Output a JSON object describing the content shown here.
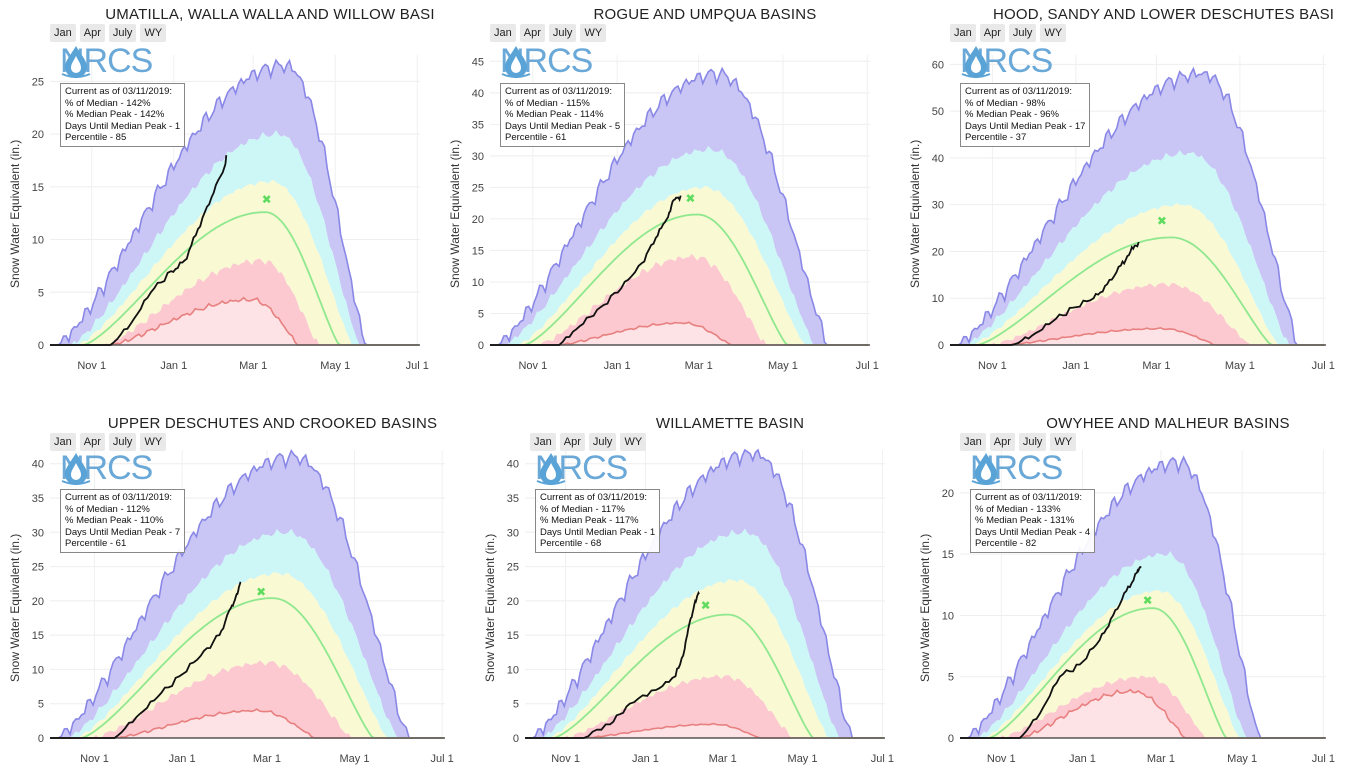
{
  "range_buttons": [
    "Jan",
    "Apr",
    "July",
    "WY"
  ],
  "logo_text": "NRCS",
  "logo_icon": "water-drop-icon",
  "y_axis_label": "Snow Water Equivalent (in.)",
  "month_ticks": [
    "Nov 1",
    "Jan 1",
    "Mar 1",
    "May 1",
    "Jul 1"
  ],
  "colors": {
    "max_band": "#c9c6f5",
    "max_line": "#8a88e6",
    "upper_band": "#cdf6f7",
    "mid_band": "#f9f9d3",
    "lower_band": "#fbc9cf",
    "min_line": "#e88080",
    "median_line": "#8fe88f",
    "current_line": "#111111",
    "median_peak_marker": "#5fdc5f"
  },
  "chart_data": [
    {
      "type": "area",
      "title": "UMATILLA, WALLA WALLA AND WILLOW BASI",
      "ylabel": "Snow Water Equivalent (in.)",
      "y_ticks": [
        0,
        5,
        10,
        15,
        20,
        25
      ],
      "ylim": [
        0,
        27.5
      ],
      "x_ticks": [
        "Nov 1",
        "Jan 1",
        "Mar 1",
        "May 1",
        "Jul 1"
      ],
      "info": [
        "Current as of 03/11/2019:",
        "% of Median - 142%",
        "% Median Peak - 142%",
        "Days Until Median Peak - 1",
        "Percentile - 85"
      ],
      "series": [
        {
          "name": "max",
          "peak": 26.5,
          "peak_day": 175,
          "start": 5,
          "end": 235
        },
        {
          "name": "p90",
          "peak": 20,
          "peak_day": 170,
          "start": 15,
          "end": 230
        },
        {
          "name": "p70",
          "peak": 15.5,
          "peak_day": 165,
          "start": 20,
          "end": 225
        },
        {
          "name": "median",
          "peak": 12.6,
          "peak_day": 160,
          "start": 25,
          "end": 215
        },
        {
          "name": "p30",
          "peak": 8,
          "peak_day": 158,
          "start": 40,
          "end": 200
        },
        {
          "name": "min",
          "peak": 4.3,
          "peak_day": 150,
          "start": 45,
          "end": 185
        },
        {
          "name": "current",
          "points": [
            [
              45,
              0
            ],
            [
              60,
              2
            ],
            [
              75,
              5
            ],
            [
              90,
              7
            ],
            [
              100,
              8
            ],
            [
              110,
              11
            ],
            [
              120,
              14
            ],
            [
              130,
              17
            ],
            [
              131,
              18
            ]
          ]
        }
      ],
      "median_peak": {
        "day": 161,
        "value": 13.8
      }
    },
    {
      "type": "area",
      "title": "ROGUE AND UMPQUA BASINS",
      "ylabel": "Snow Water Equivalent (in.)",
      "y_ticks": [
        0,
        5,
        10,
        15,
        20,
        25,
        30,
        35,
        40,
        45
      ],
      "ylim": [
        0,
        46
      ],
      "x_ticks": [
        "Nov 1",
        "Jan 1",
        "Mar 1",
        "May 1",
        "Jul 1"
      ],
      "info": [
        "Current as of 03/11/2019:",
        "% of Median - 115%",
        "% Median Peak - 114%",
        "Days Until Median Peak - 5",
        "Percentile - 61"
      ],
      "series": [
        {
          "name": "max",
          "peak": 43,
          "peak_day": 165,
          "start": 5,
          "end": 245
        },
        {
          "name": "p90",
          "peak": 31,
          "peak_day": 160,
          "start": 10,
          "end": 235
        },
        {
          "name": "p70",
          "peak": 25,
          "peak_day": 155,
          "start": 20,
          "end": 228
        },
        {
          "name": "median",
          "peak": 20.7,
          "peak_day": 150,
          "start": 25,
          "end": 215
        },
        {
          "name": "p30",
          "peak": 14,
          "peak_day": 148,
          "start": 35,
          "end": 200
        },
        {
          "name": "min",
          "peak": 3.5,
          "peak_day": 140,
          "start": 50,
          "end": 175
        },
        {
          "name": "current",
          "points": [
            [
              50,
              0
            ],
            [
              65,
              3
            ],
            [
              80,
              6
            ],
            [
              95,
              9
            ],
            [
              110,
              13
            ],
            [
              120,
              17
            ],
            [
              128,
              20
            ],
            [
              133,
              23
            ],
            [
              138,
              23.7
            ]
          ]
        }
      ],
      "median_peak": {
        "day": 145,
        "value": 23.2
      }
    },
    {
      "type": "area",
      "title": "HOOD, SANDY AND LOWER DESCHUTES BASI",
      "ylabel": "Snow Water Equivalent (in.)",
      "y_ticks": [
        0,
        10,
        20,
        30,
        40,
        50,
        60
      ],
      "ylim": [
        0,
        62
      ],
      "x_ticks": [
        "Nov 1",
        "Jan 1",
        "Mar 1",
        "May 1",
        "Jul 1"
      ],
      "info": [
        "Current as of 03/11/2019:",
        "% of Median - 98%",
        "% Median Peak - 96%",
        "Days Until Median Peak - 17",
        "Percentile - 37"
      ],
      "series": [
        {
          "name": "max",
          "peak": 58,
          "peak_day": 185,
          "start": 5,
          "end": 255
        },
        {
          "name": "p90",
          "peak": 41,
          "peak_day": 175,
          "start": 10,
          "end": 248
        },
        {
          "name": "p70",
          "peak": 30,
          "peak_day": 170,
          "start": 15,
          "end": 240
        },
        {
          "name": "median",
          "peak": 23,
          "peak_day": 162,
          "start": 20,
          "end": 235
        },
        {
          "name": "p30",
          "peak": 13,
          "peak_day": 160,
          "start": 30,
          "end": 220
        },
        {
          "name": "min",
          "peak": 3.5,
          "peak_day": 155,
          "start": 40,
          "end": 195
        },
        {
          "name": "current",
          "points": [
            [
              45,
              0
            ],
            [
              60,
              2
            ],
            [
              75,
              5
            ],
            [
              90,
              8
            ],
            [
              105,
              10
            ],
            [
              115,
              13
            ],
            [
              125,
              17
            ],
            [
              132,
              20
            ],
            [
              138,
              22
            ]
          ]
        }
      ],
      "median_peak": {
        "day": 155,
        "value": 26.5
      }
    },
    {
      "type": "area",
      "title": "UPPER DESCHUTES AND CROOKED BASINS",
      "ylabel": "Snow Water Equivalent (in.)",
      "y_ticks": [
        0,
        5,
        10,
        15,
        20,
        25,
        30,
        35,
        40
      ],
      "ylim": [
        0,
        42
      ],
      "x_ticks": [
        "Nov 1",
        "Jan 1",
        "Mar 1",
        "May 1",
        "Jul 1"
      ],
      "info": [
        "Current as of 03/11/2019:",
        "% of Median - 112%",
        "% Median Peak - 110%",
        "Days Until Median Peak - 7",
        "Percentile - 61"
      ],
      "series": [
        {
          "name": "max",
          "peak": 41,
          "peak_day": 170,
          "start": 5,
          "end": 250
        },
        {
          "name": "p90",
          "peak": 30,
          "peak_day": 165,
          "start": 12,
          "end": 242
        },
        {
          "name": "p70",
          "peak": 24,
          "peak_day": 160,
          "start": 18,
          "end": 235
        },
        {
          "name": "median",
          "peak": 20.4,
          "peak_day": 155,
          "start": 22,
          "end": 225
        },
        {
          "name": "p30",
          "peak": 11,
          "peak_day": 152,
          "start": 30,
          "end": 210
        },
        {
          "name": "min",
          "peak": 4,
          "peak_day": 145,
          "start": 45,
          "end": 185
        },
        {
          "name": "current",
          "points": [
            [
              45,
              0
            ],
            [
              60,
              3
            ],
            [
              75,
              6
            ],
            [
              90,
              9
            ],
            [
              105,
              12
            ],
            [
              118,
              15
            ],
            [
              126,
              19
            ],
            [
              130,
              21
            ],
            [
              133,
              22.6
            ]
          ]
        }
      ],
      "median_peak": {
        "day": 147,
        "value": 21.3
      }
    },
    {
      "type": "area",
      "title": "WILLAMETTE BASIN",
      "ylabel": "Snow Water Equivalent (in.)",
      "y_ticks": [
        0,
        5,
        10,
        15,
        20,
        25,
        30,
        35,
        40
      ],
      "ylim": [
        0,
        42
      ],
      "x_ticks": [
        "Nov 1",
        "Jan 1",
        "Mar 1",
        "May 1",
        "Jul 1"
      ],
      "info": [
        "Current as of 03/11/2019:",
        "% of Median - 117%",
        "% Median Peak - 117%",
        "Days Until Median Peak - 1",
        "Percentile - 68"
      ],
      "series": [
        {
          "name": "max",
          "peak": 41.5,
          "peak_day": 175,
          "start": 5,
          "end": 250
        },
        {
          "name": "p90",
          "peak": 30,
          "peak_day": 168,
          "start": 12,
          "end": 240
        },
        {
          "name": "p70",
          "peak": 23,
          "peak_day": 162,
          "start": 18,
          "end": 232
        },
        {
          "name": "median",
          "peak": 18,
          "peak_day": 155,
          "start": 22,
          "end": 220
        },
        {
          "name": "p30",
          "peak": 9,
          "peak_day": 152,
          "start": 30,
          "end": 205
        },
        {
          "name": "min",
          "peak": 2,
          "peak_day": 145,
          "start": 45,
          "end": 180
        },
        {
          "name": "current",
          "points": [
            [
              45,
              0
            ],
            [
              65,
              2
            ],
            [
              80,
              5
            ],
            [
              100,
              7
            ],
            [
              115,
              9
            ],
            [
              122,
              13
            ],
            [
              126,
              17
            ],
            [
              130,
              20
            ],
            [
              133,
              21
            ]
          ]
        }
      ],
      "median_peak": {
        "day": 138,
        "value": 19.3
      }
    },
    {
      "type": "area",
      "title": "OWYHEE AND MALHEUR BASINS",
      "ylabel": "Snow Water Equivalent (in.)",
      "y_ticks": [
        0,
        5,
        10,
        15,
        20
      ],
      "ylim": [
        0,
        23.5
      ],
      "x_ticks": [
        "Nov 1",
        "Jan 1",
        "Mar 1",
        "May 1",
        "Jul 1"
      ],
      "info": [
        "Current as of 03/11/2019:",
        "% of Median - 133%",
        "% Median Peak - 131%",
        "Days Until Median Peak - 4",
        "Percentile - 82"
      ],
      "series": [
        {
          "name": "max",
          "peak": 22.5,
          "peak_day": 165,
          "start": 5,
          "end": 225
        },
        {
          "name": "p90",
          "peak": 15,
          "peak_day": 155,
          "start": 12,
          "end": 215
        },
        {
          "name": "p70",
          "peak": 12,
          "peak_day": 150,
          "start": 18,
          "end": 210
        },
        {
          "name": "median",
          "peak": 10.6,
          "peak_day": 145,
          "start": 22,
          "end": 200
        },
        {
          "name": "p30",
          "peak": 5,
          "peak_day": 140,
          "start": 30,
          "end": 185
        },
        {
          "name": "min",
          "peak": 3.8,
          "peak_day": 130,
          "start": 45,
          "end": 170
        },
        {
          "name": "current",
          "points": [
            [
              45,
              0
            ],
            [
              60,
              2
            ],
            [
              75,
              5
            ],
            [
              90,
              6
            ],
            [
              105,
              8
            ],
            [
              115,
              10
            ],
            [
              125,
              12
            ],
            [
              133,
              13.5
            ],
            [
              136,
              14
            ]
          ]
        }
      ],
      "median_peak": {
        "day": 141,
        "value": 11.2
      }
    }
  ]
}
